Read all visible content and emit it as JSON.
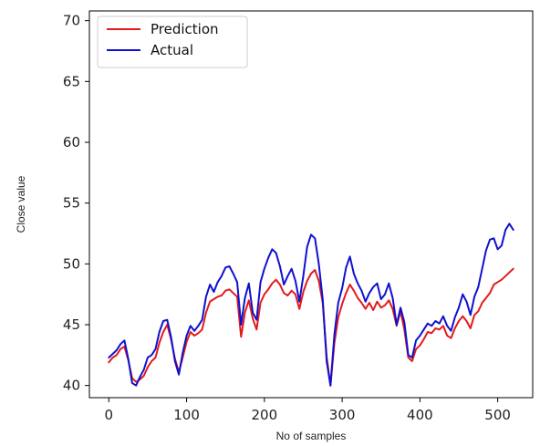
{
  "chart_data": {
    "type": "line",
    "title": "",
    "xlabel": "No of samples",
    "ylabel": "Close value",
    "xlim": [
      -25,
      545
    ],
    "ylim": [
      39,
      70.8
    ],
    "xticks": [
      0,
      100,
      200,
      300,
      400,
      500
    ],
    "yticks": [
      40,
      45,
      50,
      55,
      60,
      65,
      70
    ],
    "grid": false,
    "legend_position": "top-left",
    "series": [
      {
        "name": "Prediction",
        "color": "#e31a1c",
        "x": [
          0,
          5,
          10,
          15,
          20,
          25,
          30,
          35,
          40,
          45,
          50,
          55,
          60,
          65,
          70,
          75,
          80,
          85,
          90,
          95,
          100,
          105,
          110,
          115,
          120,
          125,
          130,
          135,
          140,
          145,
          150,
          155,
          160,
          165,
          170,
          175,
          180,
          185,
          190,
          195,
          200,
          205,
          210,
          215,
          220,
          225,
          230,
          235,
          240,
          245,
          250,
          255,
          260,
          265,
          270,
          275,
          280,
          285,
          290,
          295,
          300,
          305,
          310,
          315,
          320,
          325,
          330,
          335,
          340,
          345,
          350,
          355,
          360,
          365,
          370,
          375,
          380,
          385,
          390,
          395,
          400,
          405,
          410,
          415,
          420,
          425,
          430,
          435,
          440,
          445,
          450,
          455,
          460,
          465,
          470,
          475,
          480,
          485,
          490,
          495,
          500,
          505,
          510,
          515,
          520
        ],
        "values": [
          41.9,
          42.3,
          42.5,
          43.0,
          43.2,
          42.1,
          40.6,
          40.3,
          40.5,
          40.8,
          41.5,
          42.0,
          42.3,
          43.5,
          44.4,
          45.0,
          43.8,
          42.2,
          41.1,
          42.3,
          43.6,
          44.4,
          44.1,
          44.3,
          44.6,
          46.0,
          46.9,
          47.1,
          47.3,
          47.4,
          47.8,
          47.9,
          47.6,
          47.3,
          44.0,
          46.0,
          47.0,
          45.5,
          44.6,
          46.8,
          47.5,
          47.9,
          48.4,
          48.7,
          48.3,
          47.6,
          47.4,
          47.8,
          47.5,
          46.3,
          47.7,
          48.6,
          49.2,
          49.5,
          48.6,
          46.8,
          42.4,
          40.0,
          43.5,
          45.6,
          46.7,
          47.6,
          48.3,
          47.8,
          47.2,
          46.8,
          46.3,
          46.8,
          46.2,
          46.9,
          46.4,
          46.6,
          47.0,
          46.3,
          44.9,
          46.1,
          44.6,
          42.3,
          42.0,
          43.0,
          43.3,
          43.8,
          44.4,
          44.3,
          44.7,
          44.6,
          44.9,
          44.1,
          43.9,
          44.7,
          45.3,
          45.7,
          45.3,
          44.7,
          45.8,
          46.1,
          46.8,
          47.2,
          47.6,
          48.3,
          48.5,
          48.7,
          49.0,
          49.3,
          49.6
        ]
      },
      {
        "name": "Actual",
        "color": "#1010d0",
        "x": [
          0,
          5,
          10,
          15,
          20,
          25,
          30,
          35,
          40,
          45,
          50,
          55,
          60,
          65,
          70,
          75,
          80,
          85,
          90,
          95,
          100,
          105,
          110,
          115,
          120,
          125,
          130,
          135,
          140,
          145,
          150,
          155,
          160,
          165,
          170,
          175,
          180,
          185,
          190,
          195,
          200,
          205,
          210,
          215,
          220,
          225,
          230,
          235,
          240,
          245,
          250,
          255,
          260,
          265,
          270,
          275,
          280,
          285,
          290,
          295,
          300,
          305,
          310,
          315,
          320,
          325,
          330,
          335,
          340,
          345,
          350,
          355,
          360,
          365,
          370,
          375,
          380,
          385,
          390,
          395,
          400,
          405,
          410,
          415,
          420,
          425,
          430,
          435,
          440,
          445,
          450,
          455,
          460,
          465,
          470,
          475,
          480,
          485,
          490,
          495,
          500,
          505,
          510,
          515,
          520
        ],
        "values": [
          42.3,
          42.6,
          42.9,
          43.4,
          43.7,
          42.2,
          40.2,
          40.0,
          40.7,
          41.3,
          42.3,
          42.5,
          43.0,
          44.4,
          45.3,
          45.4,
          44.0,
          42.0,
          40.9,
          42.7,
          44.1,
          44.9,
          44.5,
          44.9,
          45.4,
          47.3,
          48.3,
          47.7,
          48.5,
          49.0,
          49.7,
          49.8,
          49.2,
          48.5,
          45.0,
          47.2,
          48.4,
          46.0,
          45.4,
          48.5,
          49.6,
          50.5,
          51.2,
          50.9,
          49.8,
          48.3,
          49.0,
          49.6,
          48.6,
          46.9,
          49.0,
          51.4,
          52.4,
          52.1,
          50.0,
          47.1,
          42.0,
          40.0,
          44.2,
          46.8,
          48.0,
          49.7,
          50.6,
          49.2,
          48.4,
          47.8,
          46.9,
          47.6,
          48.1,
          48.4,
          47.1,
          47.5,
          48.4,
          47.2,
          45.0,
          46.4,
          45.2,
          42.5,
          42.3,
          43.7,
          44.1,
          44.6,
          45.1,
          44.9,
          45.3,
          45.1,
          45.7,
          44.9,
          44.5,
          45.6,
          46.4,
          47.5,
          46.9,
          45.8,
          47.3,
          48.1,
          49.6,
          51.1,
          52.0,
          52.1,
          51.2,
          51.5,
          52.8,
          53.3,
          52.8
        ]
      }
    ]
  }
}
